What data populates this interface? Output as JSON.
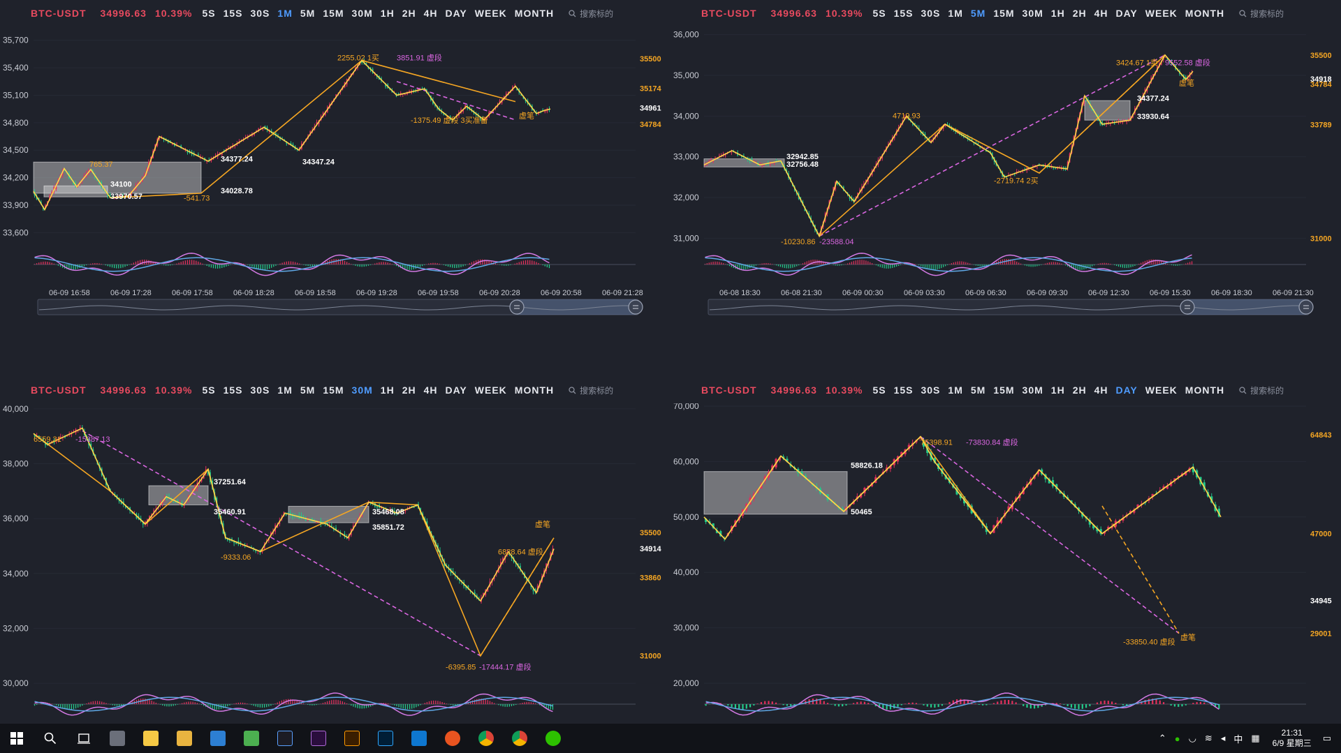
{
  "toolbar": {
    "symbol": "BTC-USDT",
    "price": "34996.63",
    "change": "10.39%",
    "timeframes": [
      "5S",
      "15S",
      "30S",
      "1M",
      "5M",
      "15M",
      "30M",
      "1H",
      "2H",
      "4H",
      "DAY",
      "WEEK",
      "MONTH"
    ],
    "search_placeholder": "搜索标的"
  },
  "colors": {
    "background": "#1f222b",
    "up": "#e0305c",
    "down": "#23c98a",
    "stroke": "#ffd54a",
    "segment": "#f5a623",
    "virtual": "#d966e0",
    "dif": "#d57ae6",
    "dea": "#5fa8e6",
    "accent": "#4f9cff"
  },
  "taskbar": {
    "apps": [
      "windows-start",
      "search",
      "task-view",
      "app-1",
      "sticky-notes",
      "file-explorer",
      "mail",
      "notepad",
      "app-k",
      "premiere",
      "illustrator",
      "photoshop",
      "vscode",
      "ubuntu",
      "chrome",
      "chrome-2",
      "wechat"
    ],
    "tray_ime": "中",
    "time": "21:31",
    "date": "6/9 星期三"
  },
  "chart_data": [
    {
      "type": "candlestick",
      "timeframe": "1M",
      "y_ticks": [
        "35,700",
        "35,400",
        "35,100",
        "34,800",
        "34,500",
        "34,200",
        "33,900",
        "33,600"
      ],
      "ylim": [
        33450,
        35850
      ],
      "x_ticks": [
        "06-09 16:58",
        "06-09 17:28",
        "06-09 17:58",
        "06-09 18:28",
        "06-09 18:58",
        "06-09 19:28",
        "06-09 19:58",
        "06-09 20:28",
        "06-09 20:58",
        "06-09 21:28"
      ],
      "x_count": 240,
      "strokes": [
        [
          0,
          34050
        ],
        [
          16,
          33850
        ],
        [
          44,
          34300
        ],
        [
          62,
          34100
        ],
        [
          82,
          34290
        ],
        [
          110,
          33980
        ],
        [
          136,
          34000
        ],
        [
          160,
          34220
        ],
        [
          180,
          34650
        ],
        [
          250,
          34380
        ],
        [
          330,
          34750
        ],
        [
          380,
          34500
        ],
        [
          470,
          35480
        ],
        [
          520,
          35100
        ],
        [
          560,
          35170
        ],
        [
          580,
          34950
        ],
        [
          600,
          34830
        ],
        [
          620,
          34980
        ],
        [
          645,
          34830
        ],
        [
          690,
          35200
        ],
        [
          720,
          34900
        ],
        [
          730,
          34930
        ],
        [
          740,
          34950
        ]
      ],
      "segments": [
        [
          110,
          33980
        ],
        [
          240,
          34030
        ],
        [
          470,
          35480
        ],
        [
          690,
          35030
        ]
      ],
      "virtual_segments": [
        [
          [
            520,
            35250
          ],
          [
            690,
            34830
          ]
        ]
      ],
      "zones": [
        {
          "range": [
            0,
            240
          ],
          "low": 34030,
          "high": 34370
        },
        {
          "range": [
            15,
            106
          ],
          "low": 33990,
          "high": 34110
        }
      ],
      "labels": [
        {
          "text": "765.37",
          "i": 80,
          "v": 34320,
          "kind": "seg"
        },
        {
          "text": "2255.02 1买",
          "i": 435,
          "v": 35480,
          "kind": "seg"
        },
        {
          "text": "3851.91 虚段",
          "i": 520,
          "v": 35480,
          "kind": "virtual"
        },
        {
          "text": "-1375.49 虚段 3买准备",
          "i": 540,
          "v": 34800,
          "kind": "seg"
        },
        {
          "text": "-541.73",
          "i": 215,
          "v": 33950,
          "kind": "seg"
        },
        {
          "text": "虚笔",
          "i": 695,
          "v": 34850,
          "kind": "seg"
        },
        {
          "text": "34100",
          "i": 110,
          "v": 34100,
          "kind": "pivot"
        },
        {
          "text": "33970.57",
          "i": 110,
          "v": 33970,
          "kind": "pivot"
        },
        {
          "text": "34028.78",
          "i": 268,
          "v": 34028,
          "kind": "pivot"
        },
        {
          "text": "34377.24",
          "i": 268,
          "v": 34377,
          "kind": "pivot"
        },
        {
          "text": "34347.24",
          "i": 385,
          "v": 34347,
          "kind": "pivot"
        }
      ],
      "right_axis": [
        {
          "text": "35500",
          "v": 35500,
          "kind": "seg"
        },
        {
          "text": "35174",
          "v": 35174,
          "kind": "seg"
        },
        {
          "text": "34961",
          "v": 34961,
          "kind": "price"
        },
        {
          "text": "34784",
          "v": 34784,
          "kind": "seg"
        }
      ]
    },
    {
      "type": "candlestick",
      "timeframe": "5M",
      "y_ticks": [
        "36,000",
        "35,000",
        "34,000",
        "33,000",
        "32,000",
        "31,000"
      ],
      "ylim": [
        30800,
        36200
      ],
      "x_ticks": [
        "06-08 18:30",
        "06-08 21:30",
        "06-09 00:30",
        "06-09 03:30",
        "06-09 06:30",
        "06-09 09:30",
        "06-09 12:30",
        "06-09 15:30",
        "06-09 18:30",
        "06-09 21:30"
      ],
      "x_count": 240,
      "strokes": [
        [
          0,
          32800
        ],
        [
          40,
          33150
        ],
        [
          80,
          32800
        ],
        [
          110,
          32900
        ],
        [
          165,
          31050
        ],
        [
          190,
          32400
        ],
        [
          215,
          31900
        ],
        [
          290,
          34000
        ],
        [
          325,
          33350
        ],
        [
          345,
          33800
        ],
        [
          410,
          33100
        ],
        [
          430,
          32500
        ],
        [
          480,
          32800
        ],
        [
          520,
          32700
        ],
        [
          545,
          34500
        ],
        [
          570,
          33800
        ],
        [
          610,
          33900
        ],
        [
          660,
          35500
        ],
        [
          690,
          34900
        ],
        [
          700,
          35100
        ]
      ],
      "segments": [
        [
          165,
          31050
        ],
        [
          345,
          33800
        ],
        [
          480,
          32600
        ],
        [
          660,
          35500
        ]
      ],
      "virtual_segments": [
        [
          [
            165,
            31050
          ],
          [
            660,
            35500
          ]
        ],
        [
          [
            480,
            32600
          ],
          [
            660,
            35500
          ]
        ]
      ],
      "zones": [
        {
          "range": [
            0,
            115
          ],
          "low": 32750,
          "high": 32950
        },
        {
          "range": [
            545,
            610
          ],
          "low": 33900,
          "high": 34380
        }
      ],
      "labels": [
        {
          "text": "4719.93",
          "i": 270,
          "v": 33950,
          "kind": "seg"
        },
        {
          "text": "-2719.74 2买",
          "i": 415,
          "v": 32350,
          "kind": "seg"
        },
        {
          "text": "3424.67 1卖",
          "i": 590,
          "v": 35250,
          "kind": "seg"
        },
        {
          "text": "9552.58 虚段",
          "i": 660,
          "v": 35250,
          "kind": "virtual"
        },
        {
          "text": "-10230.86",
          "i": 110,
          "v": 30850,
          "kind": "seg"
        },
        {
          "text": "-23588.04",
          "i": 165,
          "v": 30850,
          "kind": "virtual"
        },
        {
          "text": "虚笔",
          "i": 680,
          "v": 34750,
          "kind": "seg"
        },
        {
          "text": "32942.85",
          "i": 118,
          "v": 32942,
          "kind": "pivot"
        },
        {
          "text": "32756.48",
          "i": 118,
          "v": 32756,
          "kind": "pivot"
        },
        {
          "text": "34377.24",
          "i": 620,
          "v": 34377,
          "kind": "pivot"
        },
        {
          "text": "33930.64",
          "i": 620,
          "v": 33930,
          "kind": "pivot"
        }
      ],
      "right_axis": [
        {
          "text": "35500",
          "v": 35500,
          "kind": "seg"
        },
        {
          "text": "34918",
          "v": 34918,
          "kind": "price"
        },
        {
          "text": "34784",
          "v": 34784,
          "kind": "seg"
        },
        {
          "text": "33789",
          "v": 33789,
          "kind": "seg"
        },
        {
          "text": "31000",
          "v": 31000,
          "kind": "seg"
        }
      ]
    },
    {
      "type": "candlestick",
      "timeframe": "30M",
      "y_ticks": [
        "40,000",
        "38,000",
        "36,000",
        "34,000",
        "32,000",
        "30,000"
      ],
      "ylim": [
        29900,
        40200
      ],
      "x_ticks": [],
      "x_count": 240,
      "strokes": [
        [
          0,
          39100
        ],
        [
          20,
          38700
        ],
        [
          70,
          39300
        ],
        [
          110,
          37000
        ],
        [
          160,
          35800
        ],
        [
          190,
          36800
        ],
        [
          215,
          36500
        ],
        [
          250,
          37800
        ],
        [
          275,
          35300
        ],
        [
          325,
          34800
        ],
        [
          360,
          36200
        ],
        [
          420,
          35800
        ],
        [
          450,
          35300
        ],
        [
          480,
          36600
        ],
        [
          520,
          36200
        ],
        [
          550,
          36500
        ],
        [
          590,
          34300
        ],
        [
          640,
          33000
        ],
        [
          680,
          34800
        ],
        [
          720,
          33300
        ],
        [
          745,
          34900
        ]
      ],
      "segments": [
        [
          0,
          39100
        ],
        [
          110,
          37000
        ],
        [
          160,
          35800
        ],
        [
          250,
          37800
        ],
        [
          275,
          35300
        ],
        [
          325,
          34800
        ],
        [
          480,
          36600
        ],
        [
          550,
          36500
        ],
        [
          640,
          31000
        ],
        [
          745,
          35300
        ]
      ],
      "virtual_segments": [
        [
          [
            70,
            39200
          ],
          [
            640,
            31000
          ]
        ],
        [
          [
            640,
            31000
          ],
          [
            745,
            35300
          ]
        ]
      ],
      "zones": [
        {
          "range": [
            165,
            250
          ],
          "low": 36500,
          "high": 37200
        },
        {
          "range": [
            365,
            480
          ],
          "low": 35850,
          "high": 36450
        }
      ],
      "labels": [
        {
          "text": "6559.31",
          "i": 0,
          "v": 38800,
          "kind": "seg"
        },
        {
          "text": "-15387.13",
          "i": 60,
          "v": 38800,
          "kind": "virtual"
        },
        {
          "text": "37251.64",
          "i": 258,
          "v": 37251,
          "kind": "pivot"
        },
        {
          "text": "35460.91",
          "i": 258,
          "v": 36150,
          "kind": "pivot"
        },
        {
          "text": "35468.08",
          "i": 485,
          "v": 36150,
          "kind": "pivot"
        },
        {
          "text": "35851.72",
          "i": 485,
          "v": 35600,
          "kind": "pivot"
        },
        {
          "text": "-9333.06",
          "i": 268,
          "v": 34500,
          "kind": "seg"
        },
        {
          "text": "6828.64 虚段",
          "i": 665,
          "v": 34700,
          "kind": "seg"
        },
        {
          "text": "虚笔",
          "i": 718,
          "v": 35700,
          "kind": "seg"
        },
        {
          "text": "-6395.85",
          "i": 590,
          "v": 30500,
          "kind": "seg"
        },
        {
          "text": "-17444.17 虚段",
          "i": 638,
          "v": 30500,
          "kind": "virtual"
        }
      ],
      "right_axis": [
        {
          "text": "35500",
          "v": 35500,
          "kind": "seg"
        },
        {
          "text": "34914",
          "v": 34914,
          "kind": "price"
        },
        {
          "text": "33860",
          "v": 33860,
          "kind": "seg"
        },
        {
          "text": "31000",
          "v": 31000,
          "kind": "seg"
        }
      ]
    },
    {
      "type": "candlestick",
      "timeframe": "DAY",
      "y_ticks": [
        "70,000",
        "60,000",
        "50,000",
        "40,000",
        "30,000",
        "20,000"
      ],
      "ylim": [
        19500,
        70500
      ],
      "x_ticks": [],
      "x_count": 140,
      "strokes": [
        [
          0,
          50000
        ],
        [
          30,
          46000
        ],
        [
          110,
          61000
        ],
        [
          200,
          51000
        ],
        [
          310,
          64500
        ],
        [
          330,
          60000
        ],
        [
          410,
          47000
        ],
        [
          480,
          58500
        ],
        [
          570,
          47000
        ],
        [
          700,
          59000
        ],
        [
          740,
          50000
        ]
      ],
      "segments": [
        [
          30,
          46000
        ],
        [
          110,
          61000
        ],
        [
          200,
          51000
        ],
        [
          310,
          64500
        ],
        [
          410,
          47000
        ],
        [
          480,
          58500
        ],
        [
          570,
          47000
        ],
        [
          700,
          59000
        ]
      ],
      "virtual_segments": [
        [
          [
            310,
            64500
          ],
          [
            680,
            29000
          ]
        ],
        [
          [
            570,
            52000
          ],
          [
            680,
            29000
          ]
        ]
      ],
      "zones": [
        {
          "range": [
            0,
            205
          ],
          "low": 50500,
          "high": 58200
        }
      ],
      "labels": [
        {
          "text": "58826.18",
          "i": 210,
          "v": 58826,
          "kind": "pivot"
        },
        {
          "text": "50465",
          "i": 210,
          "v": 50465,
          "kind": "pivot"
        },
        {
          "text": "75398.91",
          "i": 310,
          "v": 63000,
          "kind": "seg"
        },
        {
          "text": "-73830.84 虚段",
          "i": 375,
          "v": 63000,
          "kind": "virtual"
        },
        {
          "text": "-33850.40 虚段",
          "i": 600,
          "v": 27000,
          "kind": "seg"
        },
        {
          "text": "虚笔",
          "i": 682,
          "v": 27800,
          "kind": "seg"
        }
      ],
      "right_axis": [
        {
          "text": "64843",
          "v": 64843,
          "kind": "seg"
        },
        {
          "text": "47000",
          "v": 47000,
          "kind": "seg"
        },
        {
          "text": "34945",
          "v": 34945,
          "kind": "price"
        },
        {
          "text": "29001",
          "v": 29001,
          "kind": "seg"
        }
      ]
    }
  ]
}
